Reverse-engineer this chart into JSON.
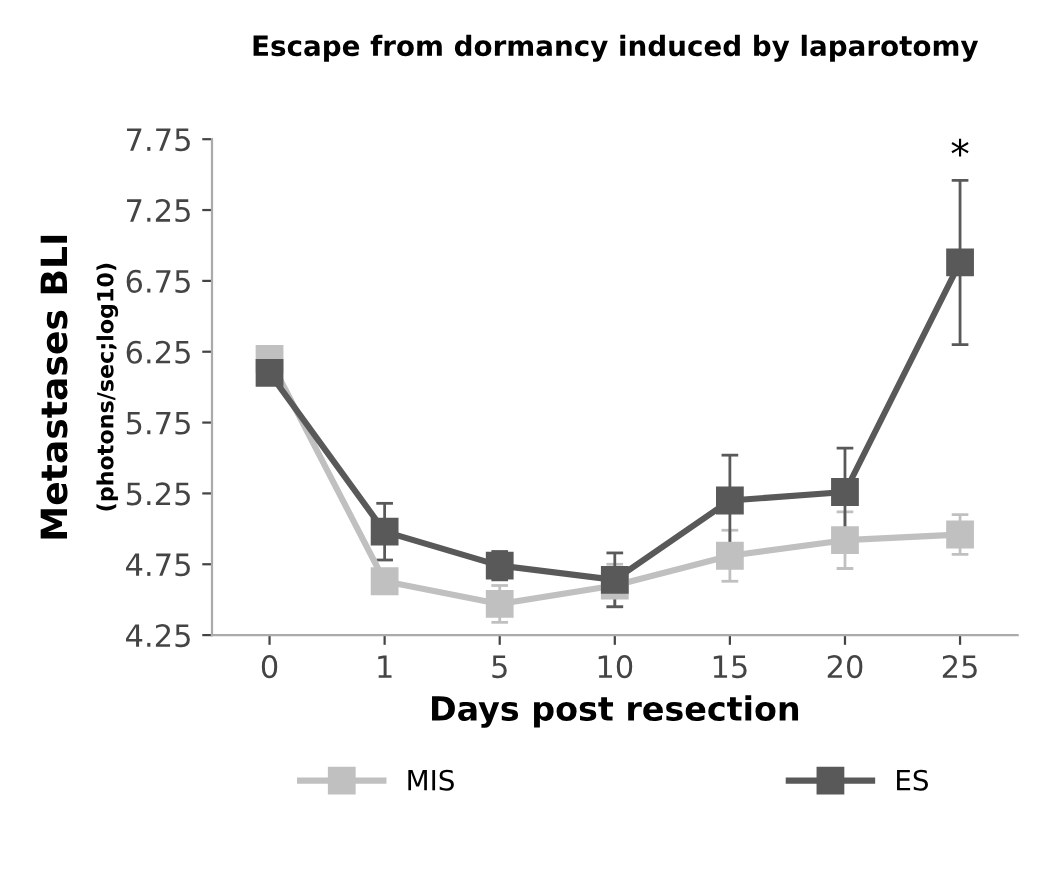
{
  "chart_data": {
    "type": "line",
    "title": "Escape from dormancy induced by laparotomy",
    "xlabel": "Days post resection",
    "ylabel": "Metastases BLI\n(photons/sec;log10)",
    "categories": [
      "0",
      "1",
      "5",
      "10",
      "15",
      "20",
      "25"
    ],
    "series": [
      {
        "name": "MIS",
        "color": "#c0c0c0",
        "values": [
          6.2,
          4.63,
          4.47,
          4.6,
          4.81,
          4.92,
          4.96
        ],
        "errors": [
          null,
          null,
          0.13,
          0.15,
          0.18,
          0.2,
          0.14
        ]
      },
      {
        "name": "ES",
        "color": "#595959",
        "values": [
          6.1,
          4.98,
          4.74,
          4.64,
          5.2,
          5.26,
          6.88
        ],
        "errors": [
          null,
          0.2,
          0.1,
          0.19,
          0.32,
          0.31,
          0.58
        ]
      }
    ],
    "annotations": [
      {
        "text": "*",
        "x": "25",
        "y": 6.88
      }
    ],
    "ylim": [
      4.25,
      7.75
    ],
    "yticks": [
      4.25,
      4.75,
      5.25,
      5.75,
      6.25,
      6.75,
      7.25,
      7.75
    ],
    "grid": false,
    "legend": "bottom",
    "marker": "square",
    "line_style": "solid"
  }
}
